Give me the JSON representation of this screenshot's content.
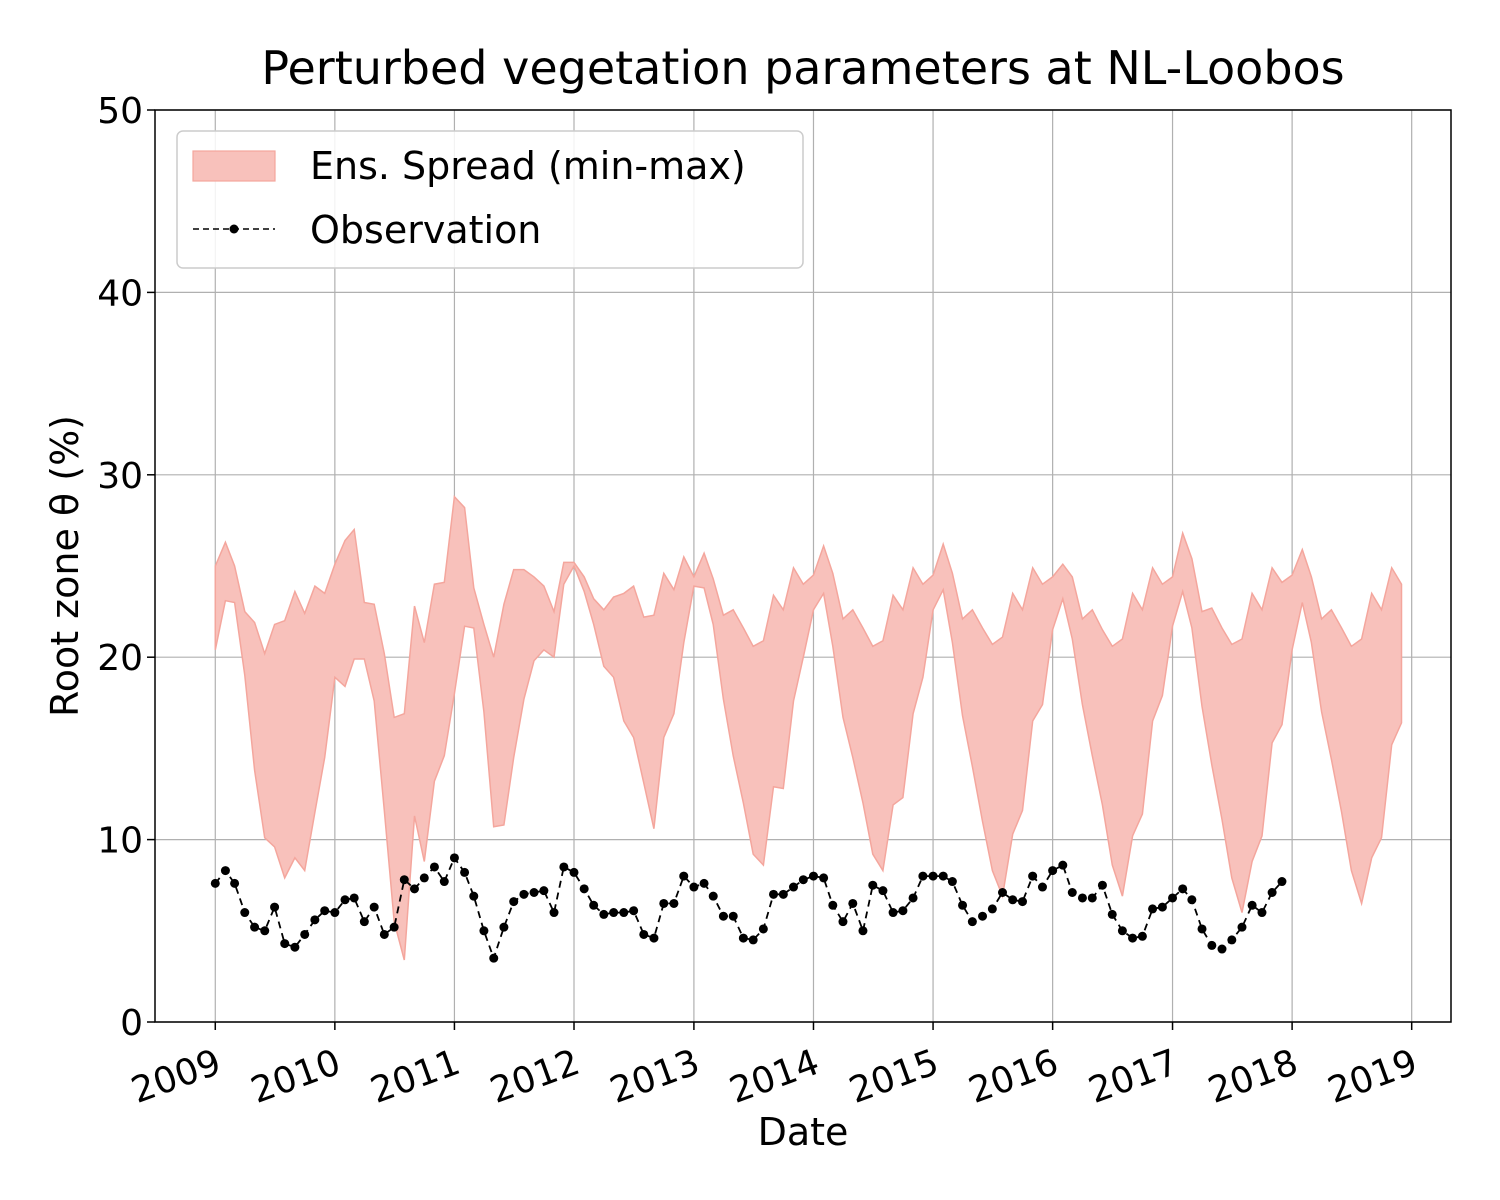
{
  "chart_data": {
    "type": "area",
    "title": "Perturbed vegetation parameters at NL-Loobos",
    "xlabel": "Date",
    "ylabel": "Root zone θ  (%)",
    "xlim": [
      "2008-07-01",
      "2019-05-01"
    ],
    "ylim": [
      0,
      50
    ],
    "yticks": [
      "0",
      "10",
      "20",
      "30",
      "40",
      "50"
    ],
    "xticks": [
      "2009",
      "2010",
      "2011",
      "2012",
      "2013",
      "2014",
      "2015",
      "2016",
      "2017",
      "2018",
      "2019"
    ],
    "grid": true,
    "legend": {
      "position": "top-left",
      "entries": [
        "Ens. Spread (min-max)",
        "Observation"
      ]
    },
    "colors": {
      "spread_fill": "#f8c1bb",
      "spread_edge": "#f4a69d",
      "observation": "#000000"
    },
    "spread": {
      "name": "Ens. Spread (min-max)",
      "dates": [
        "2009-01",
        "2009-02",
        "2009-03",
        "2009-04",
        "2009-05",
        "2009-06",
        "2009-07",
        "2009-08",
        "2009-09",
        "2009-10",
        "2009-11",
        "2009-12",
        "2010-01",
        "2010-02",
        "2010-03",
        "2010-04",
        "2010-05",
        "2010-06",
        "2010-07",
        "2010-08",
        "2010-09",
        "2010-10",
        "2010-11",
        "2010-12",
        "2011-01",
        "2011-02",
        "2011-03",
        "2011-04",
        "2011-05",
        "2011-06",
        "2011-07",
        "2011-08",
        "2011-09",
        "2011-10",
        "2011-11",
        "2011-12",
        "2012-01",
        "2012-02",
        "2012-03",
        "2012-04",
        "2012-05",
        "2012-06",
        "2012-07",
        "2012-08",
        "2012-09",
        "2012-10",
        "2012-11",
        "2012-12",
        "2013-01",
        "2013-02",
        "2013-03",
        "2013-04",
        "2013-05",
        "2013-06",
        "2013-07",
        "2013-08",
        "2013-09",
        "2013-10",
        "2013-11",
        "2013-12",
        "2014-01",
        "2014-02",
        "2014-03",
        "2014-04",
        "2014-05",
        "2014-06",
        "2014-07",
        "2014-08",
        "2014-09",
        "2014-10",
        "2014-11",
        "2014-12",
        "2015-01",
        "2015-02",
        "2015-03",
        "2015-04",
        "2015-05",
        "2015-06",
        "2015-07",
        "2015-08",
        "2015-09",
        "2015-10",
        "2015-11",
        "2015-12",
        "2016-01",
        "2016-02",
        "2016-03",
        "2016-04",
        "2016-05",
        "2016-06",
        "2016-07",
        "2016-08",
        "2016-09",
        "2016-10",
        "2016-11",
        "2016-12",
        "2017-01",
        "2017-02",
        "2017-03",
        "2017-04",
        "2017-05",
        "2017-06",
        "2017-07",
        "2017-08",
        "2017-09",
        "2017-10",
        "2017-11",
        "2017-12",
        "2018-01",
        "2018-02",
        "2018-03",
        "2018-04",
        "2018-05",
        "2018-06",
        "2018-07",
        "2018-08",
        "2018-09",
        "2018-10",
        "2018-11",
        "2018-12"
      ],
      "max": [
        25.0,
        26.3,
        25.0,
        22.5,
        21.9,
        20.2,
        21.8,
        22.0,
        23.6,
        22.4,
        23.9,
        23.5,
        25.1,
        26.4,
        27.0,
        23.0,
        22.9,
        20.2,
        16.7,
        16.9,
        22.8,
        20.8,
        24.0,
        24.1,
        28.8,
        28.2,
        23.8,
        21.8,
        20.0,
        22.9,
        24.8,
        24.8,
        24.4,
        23.9,
        22.5,
        25.2,
        25.2,
        24.4,
        23.2,
        22.6,
        23.3,
        23.5,
        23.9,
        22.2,
        22.3,
        24.6,
        23.7,
        25.5,
        24.4,
        25.7,
        24.3,
        22.3,
        22.6,
        21.6,
        20.6,
        20.9,
        23.4,
        22.6,
        24.9,
        24.0,
        24.5,
        26.1,
        24.6,
        22.1,
        22.6,
        21.6,
        20.6,
        20.9,
        23.4,
        22.6,
        24.9,
        24.0,
        24.5,
        26.2,
        24.6,
        22.1,
        22.6,
        21.6,
        20.7,
        21.1,
        23.5,
        22.6,
        24.9,
        24.0,
        24.4,
        25.1,
        24.4,
        22.1,
        22.6,
        21.5,
        20.6,
        21.0,
        23.5,
        22.6,
        24.9,
        24.0,
        24.4,
        26.8,
        25.4,
        22.5,
        22.7,
        21.6,
        20.7,
        21.0,
        23.5,
        22.6,
        24.9,
        24.1,
        24.5,
        25.9,
        24.4,
        22.1,
        22.6,
        21.6,
        20.6,
        21.0,
        23.5,
        22.6,
        24.9,
        24.0
      ],
      "min": [
        20.4,
        23.1,
        23.0,
        19.0,
        13.8,
        10.1,
        9.6,
        7.9,
        9.0,
        8.3,
        11.5,
        14.5,
        18.9,
        18.4,
        19.9,
        19.9,
        17.6,
        11.6,
        5.5,
        3.4,
        11.3,
        8.8,
        13.2,
        14.6,
        18.0,
        21.7,
        21.6,
        17.0,
        10.7,
        10.8,
        14.5,
        17.7,
        19.8,
        20.4,
        20.0,
        24.0,
        25.0,
        23.6,
        21.8,
        19.5,
        18.9,
        16.5,
        15.6,
        13.1,
        10.6,
        15.6,
        16.9,
        20.8,
        23.9,
        23.8,
        21.8,
        17.7,
        14.6,
        12.0,
        9.2,
        8.6,
        12.9,
        12.8,
        17.6,
        20.0,
        22.6,
        23.5,
        20.6,
        16.7,
        14.5,
        12.0,
        9.2,
        8.3,
        11.9,
        12.3,
        16.9,
        18.9,
        22.6,
        23.7,
        20.8,
        16.8,
        14.0,
        11.0,
        8.3,
        6.9,
        10.3,
        11.6,
        16.5,
        17.4,
        21.5,
        23.2,
        21.0,
        17.4,
        14.6,
        11.9,
        8.6,
        6.9,
        10.2,
        11.4,
        16.5,
        17.9,
        21.7,
        23.6,
        21.6,
        17.3,
        14.1,
        11.1,
        7.9,
        6.0,
        8.8,
        10.2,
        15.3,
        16.3,
        20.4,
        23.0,
        20.8,
        17.0,
        14.4,
        11.5,
        8.3,
        6.5,
        9.0,
        10.1,
        15.2,
        16.4
      ]
    },
    "observation": {
      "name": "Observation",
      "dates": [
        "2009-01",
        "2009-02",
        "2009-03",
        "2009-04",
        "2009-05",
        "2009-06",
        "2009-07",
        "2009-08",
        "2009-09",
        "2009-10",
        "2009-11",
        "2009-12",
        "2010-01",
        "2010-02",
        "2010-03",
        "2010-04",
        "2010-05",
        "2010-06",
        "2010-07",
        "2010-08",
        "2010-09",
        "2010-10",
        "2010-11",
        "2010-12",
        "2011-01",
        "2011-02",
        "2011-03",
        "2011-04",
        "2011-05",
        "2011-06",
        "2011-07",
        "2011-08",
        "2011-09",
        "2011-10",
        "2011-11",
        "2011-12",
        "2012-01",
        "2012-02",
        "2012-03",
        "2012-04",
        "2012-05",
        "2012-06",
        "2012-07",
        "2012-08",
        "2012-09",
        "2012-10",
        "2012-11",
        "2012-12",
        "2013-01",
        "2013-02",
        "2013-03",
        "2013-04",
        "2013-05",
        "2013-06",
        "2013-07",
        "2013-08",
        "2013-09",
        "2013-10",
        "2013-11",
        "2013-12",
        "2014-01",
        "2014-02",
        "2014-03",
        "2014-04",
        "2014-05",
        "2014-06",
        "2014-07",
        "2014-08",
        "2014-09",
        "2014-10",
        "2014-11",
        "2014-12",
        "2015-01",
        "2015-02",
        "2015-03",
        "2015-04",
        "2015-05",
        "2015-06",
        "2015-07",
        "2015-08",
        "2015-09",
        "2015-10",
        "2015-11",
        "2015-12",
        "2016-01",
        "2016-02",
        "2016-03",
        "2016-04",
        "2016-05",
        "2016-06",
        "2016-07",
        "2016-08",
        "2016-09",
        "2016-10",
        "2016-11",
        "2016-12",
        "2017-01",
        "2017-02",
        "2017-03",
        "2017-04",
        "2017-05",
        "2017-06",
        "2017-07",
        "2017-08",
        "2017-09",
        "2017-10",
        "2017-11",
        "2017-12"
      ],
      "values": [
        7.6,
        8.3,
        7.6,
        6.0,
        5.2,
        5.0,
        6.3,
        4.3,
        4.1,
        4.8,
        5.6,
        6.1,
        6.0,
        6.7,
        6.8,
        5.5,
        6.3,
        4.8,
        5.2,
        7.8,
        7.3,
        7.9,
        8.5,
        7.7,
        9.0,
        8.2,
        6.9,
        5.0,
        3.5,
        5.2,
        6.6,
        7.0,
        7.1,
        7.2,
        6.0,
        8.5,
        8.2,
        7.3,
        6.4,
        5.9,
        6.0,
        6.0,
        6.1,
        4.8,
        4.6,
        6.5,
        6.5,
        8.0,
        7.4,
        7.6,
        6.9,
        5.8,
        5.8,
        4.6,
        4.5,
        5.1,
        7.0,
        7.0,
        7.4,
        7.8,
        8.0,
        7.9,
        6.4,
        5.5,
        6.5,
        5.0,
        7.5,
        7.2,
        6.0,
        6.1,
        6.8,
        8.0,
        8.0,
        8.0,
        7.7,
        6.4,
        5.5,
        5.8,
        6.2,
        7.1,
        6.7,
        6.6,
        8.0,
        7.4,
        8.3,
        8.6,
        7.1,
        6.8,
        6.8,
        7.5,
        5.9,
        5.0,
        4.6,
        4.7,
        6.2,
        6.3,
        6.8,
        7.3,
        6.7,
        5.1,
        4.2,
        4.0,
        4.5,
        5.2,
        6.4,
        6.0,
        7.1,
        7.7
      ]
    }
  }
}
